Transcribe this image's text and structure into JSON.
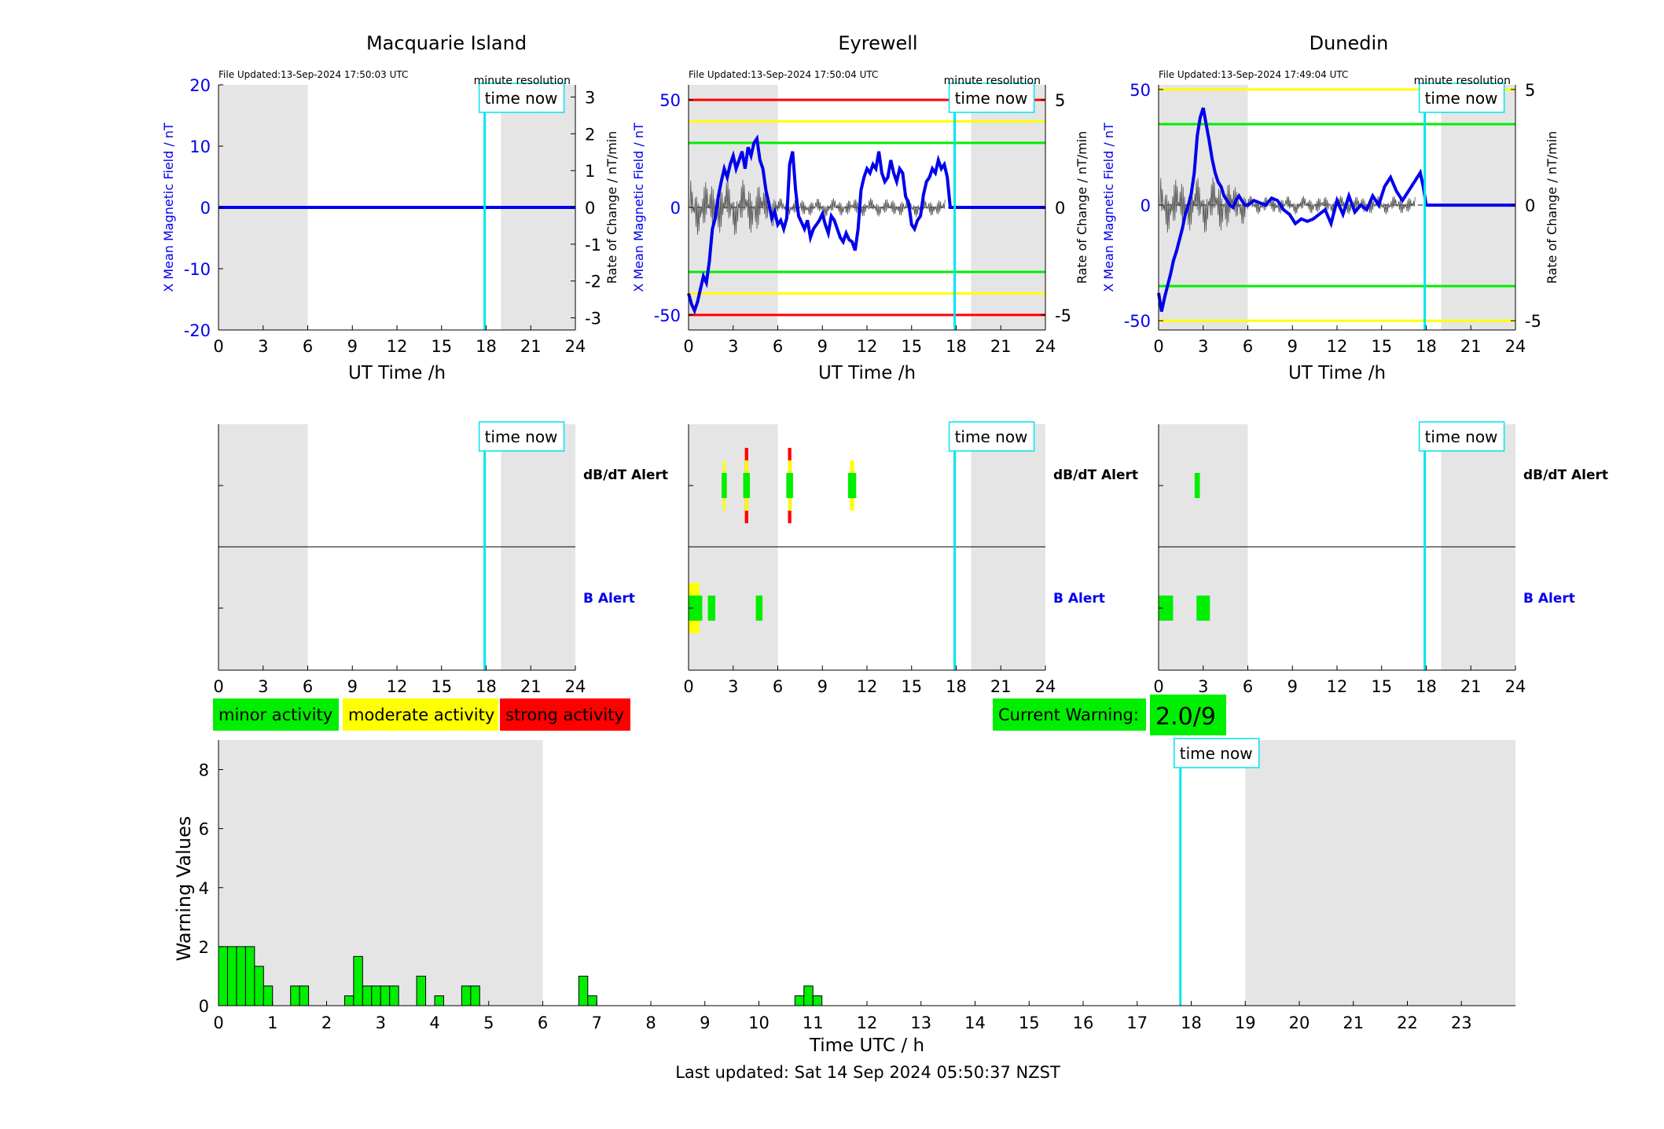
{
  "footer": "Last updated: Sat 14 Sep 2024 05:50:37 NZST",
  "legend": {
    "minor": "minor activity",
    "moderate": "moderate activity",
    "strong": "strong activity",
    "current_label": "Current Warning:",
    "current_value": "2.0/9"
  },
  "colors": {
    "minor": "#00ee00",
    "moderate": "#ffff00",
    "strong": "#ff0000",
    "now": "#00e5ee",
    "trace": "#0000ee",
    "night": "#e5e5e5"
  },
  "time_now_label": "time now",
  "dbdt_label": "dB/dT Alert",
  "b_label": "B Alert",
  "minute_resolution": "minute resolution",
  "stations": [
    {
      "name": "Macquarie Island",
      "updated": "File Updated:13-Sep-2024 17:50:03 UTC",
      "ylabel": "X Mean Magnetic Field / nT",
      "y2label": "Rate of Change / nT/min"
    },
    {
      "name": "Eyrewell",
      "updated": "File Updated:13-Sep-2024 17:50:04 UTC",
      "ylabel": "X Mean Magnetic Field / nT",
      "y2label": "Rate of Change / nT/min"
    },
    {
      "name": "Dunedin",
      "updated": "File Updated:13-Sep-2024 17:49:04 UTC",
      "ylabel": "X Mean Magnetic Field / nT",
      "y2label": "Rate of Change / nT/min"
    }
  ],
  "chart_data": [
    {
      "type": "line",
      "title": "Macquarie Island",
      "xlabel": "UT Time /h",
      "ylabel": "X Mean Magnetic Field / nT",
      "y2label": "Rate of Change / nT/min",
      "xlim": [
        0,
        24
      ],
      "ylim": [
        -20,
        20
      ],
      "y2lim": [
        -3.33,
        3.33
      ],
      "xticks": [
        0,
        3,
        6,
        9,
        12,
        15,
        18,
        21,
        24
      ],
      "yticks": [
        -20,
        -10,
        0,
        10,
        20
      ],
      "y2ticks": [
        -3,
        -2,
        -1,
        0,
        1,
        2,
        3
      ],
      "night": [
        [
          0,
          6
        ],
        [
          19,
          24
        ]
      ],
      "time_now": 17.9,
      "thresholds": [],
      "series": [
        {
          "x": [
            0,
            24
          ],
          "values": [
            0,
            0
          ]
        }
      ]
    },
    {
      "type": "line",
      "title": "Eyrewell",
      "xlabel": "UT Time /h",
      "ylabel": "X Mean Magnetic Field / nT",
      "y2label": "Rate of Change / nT/min",
      "xlim": [
        0,
        24
      ],
      "ylim": [
        -57,
        57
      ],
      "y2lim": [
        -5.7,
        5.7
      ],
      "xticks": [
        0,
        3,
        6,
        9,
        12,
        15,
        18,
        21,
        24
      ],
      "yticks": [
        -50,
        0,
        50
      ],
      "y2ticks": [
        -5,
        0,
        5
      ],
      "night": [
        [
          0,
          6
        ],
        [
          19,
          24
        ]
      ],
      "time_now": 17.9,
      "thresholds": [
        {
          "value": 50,
          "color": "#ff0000"
        },
        {
          "value": 40,
          "color": "#ffff00"
        },
        {
          "value": 30,
          "color": "#00ee00"
        },
        {
          "value": -30,
          "color": "#00ee00"
        },
        {
          "value": -40,
          "color": "#ffff00"
        },
        {
          "value": -50,
          "color": "#ff0000"
        }
      ],
      "series": [
        {
          "x": [
            0,
            0.2,
            0.4,
            0.6,
            0.8,
            1.0,
            1.2,
            1.4,
            1.6,
            1.8,
            2.0,
            2.2,
            2.4,
            2.6,
            2.8,
            3.0,
            3.2,
            3.4,
            3.6,
            3.8,
            4.0,
            4.2,
            4.4,
            4.6,
            4.8,
            5.0,
            5.2,
            5.4,
            5.6,
            5.8,
            6.0,
            6.2,
            6.4,
            6.6,
            6.8,
            7.0,
            7.2,
            7.4,
            7.6,
            7.8,
            8.0,
            8.2,
            8.4,
            8.6,
            8.8,
            9.0,
            9.2,
            9.4,
            9.6,
            9.8,
            10.0,
            10.2,
            10.4,
            10.6,
            10.8,
            11.0,
            11.2,
            11.4,
            11.6,
            11.8,
            12.0,
            12.2,
            12.4,
            12.6,
            12.8,
            13.0,
            13.2,
            13.4,
            13.6,
            13.8,
            14.0,
            14.2,
            14.4,
            14.6,
            14.8,
            15.0,
            15.2,
            15.4,
            15.6,
            15.8,
            16.0,
            16.2,
            16.4,
            16.6,
            16.8,
            17.0,
            17.2,
            17.4,
            17.6,
            17.8,
            18.0,
            19,
            20,
            21,
            22,
            23,
            24
          ],
          "values": [
            -40,
            -45,
            -48,
            -44,
            -38,
            -32,
            -35,
            -25,
            -10,
            -5,
            5,
            12,
            18,
            14,
            20,
            24,
            18,
            22,
            26,
            18,
            28,
            24,
            30,
            32,
            22,
            18,
            8,
            2,
            -5,
            -2,
            -8,
            -6,
            -10,
            -5,
            20,
            26,
            8,
            -4,
            -7,
            -10,
            -6,
            -14,
            -10,
            -8,
            -6,
            -3,
            -8,
            -12,
            -4,
            -6,
            -10,
            -14,
            -16,
            -12,
            -15,
            -16,
            -20,
            -10,
            8,
            14,
            18,
            16,
            20,
            18,
            26,
            16,
            12,
            14,
            22,
            16,
            12,
            18,
            16,
            5,
            2,
            -8,
            -10,
            -6,
            -4,
            6,
            12,
            14,
            18,
            16,
            22,
            18,
            20,
            14,
            0,
            0,
            0,
            0,
            0,
            0,
            0,
            0,
            0
          ]
        }
      ]
    },
    {
      "type": "line",
      "title": "Dunedin",
      "xlabel": "UT Time /h",
      "ylabel": "X Mean Magnetic Field / nT",
      "y2label": "Rate of Change / nT/min",
      "xlim": [
        0,
        24
      ],
      "ylim": [
        -54,
        52
      ],
      "y2lim": [
        -5.4,
        5.2
      ],
      "xticks": [
        0,
        3,
        6,
        9,
        12,
        15,
        18,
        21,
        24
      ],
      "yticks": [
        -50,
        0,
        50
      ],
      "y2ticks": [
        -5,
        0,
        5
      ],
      "night": [
        [
          0,
          6
        ],
        [
          19,
          24
        ]
      ],
      "time_now": 17.9,
      "thresholds": [
        {
          "value": 50,
          "color": "#ffff00"
        },
        {
          "value": 35,
          "color": "#00ee00"
        },
        {
          "value": -35,
          "color": "#00ee00"
        },
        {
          "value": -50,
          "color": "#ffff00"
        }
      ],
      "series": [
        {
          "x": [
            0,
            0.2,
            0.4,
            0.6,
            0.8,
            1.0,
            1.2,
            1.4,
            1.6,
            1.8,
            2.0,
            2.2,
            2.4,
            2.6,
            2.8,
            3.0,
            3.2,
            3.4,
            3.6,
            3.8,
            4.0,
            4.2,
            4.4,
            4.6,
            4.8,
            5.0,
            5.2,
            5.4,
            5.6,
            5.8,
            6.0,
            6.4,
            6.8,
            7.2,
            7.6,
            8.0,
            8.4,
            8.8,
            9.2,
            9.6,
            10.0,
            10.4,
            10.8,
            11.2,
            11.6,
            12.0,
            12.4,
            12.8,
            13.2,
            13.6,
            14.0,
            14.4,
            14.8,
            15.2,
            15.6,
            16.0,
            16.4,
            16.8,
            17.2,
            17.6,
            17.8,
            18,
            19,
            20,
            21,
            22,
            23,
            24
          ],
          "values": [
            -38,
            -46,
            -40,
            -35,
            -30,
            -24,
            -20,
            -15,
            -10,
            -4,
            0,
            5,
            14,
            30,
            38,
            42,
            35,
            28,
            20,
            14,
            10,
            8,
            4,
            2,
            0,
            -1,
            2,
            4,
            2,
            0,
            0,
            2,
            1,
            0,
            3,
            2,
            -2,
            -4,
            -8,
            -6,
            -7,
            -6,
            -4,
            -2,
            -8,
            2,
            -4,
            4,
            -3,
            0,
            -2,
            4,
            0,
            8,
            12,
            6,
            2,
            6,
            10,
            14,
            8,
            0,
            0,
            0,
            0,
            0,
            0,
            0
          ]
        }
      ]
    }
  ],
  "alerts": [
    {
      "dbdt": [],
      "b": []
    },
    {
      "dbdt": [
        {
          "h": 2.4,
          "w": 0.35,
          "level": 2
        },
        {
          "h": 3.9,
          "w": 0.45,
          "level": 3
        },
        {
          "h": 6.8,
          "w": 0.45,
          "level": 3
        },
        {
          "h": 11.0,
          "w": 0.55,
          "level": 2
        }
      ],
      "b": [
        {
          "h": 0.45,
          "w": 0.95,
          "level": 2
        },
        {
          "h": 1.55,
          "w": 0.5,
          "level": 1
        },
        {
          "h": 4.75,
          "w": 0.45,
          "level": 1
        }
      ]
    },
    {
      "dbdt": [
        {
          "h": 2.6,
          "w": 0.35,
          "level": 1
        }
      ],
      "b": [
        {
          "h": 0.5,
          "w": 0.95,
          "level": 1
        },
        {
          "h": 3.0,
          "w": 0.9,
          "level": 1
        }
      ]
    }
  ],
  "warning_chart": {
    "type": "bar",
    "xlabel": "Time UTC / h",
    "ylabel": "Warning Values",
    "xlim": [
      0,
      24
    ],
    "ylim": [
      0,
      9
    ],
    "yticks": [
      0,
      2,
      4,
      6,
      8
    ],
    "xticks": [
      0,
      1,
      2,
      3,
      4,
      5,
      6,
      7,
      8,
      9,
      10,
      11,
      12,
      13,
      14,
      15,
      16,
      17,
      18,
      19,
      20,
      21,
      22,
      23
    ],
    "night": [
      [
        0,
        6
      ],
      [
        19,
        24
      ]
    ],
    "time_now": 17.8,
    "bin_width": 0.1667,
    "x": [
      0,
      0.1667,
      0.3333,
      0.5,
      0.6667,
      0.8333,
      1.3333,
      1.5,
      2.3333,
      2.5,
      2.6667,
      2.8333,
      3.0,
      3.1667,
      3.6667,
      4.0,
      4.5,
      4.6667,
      6.6667,
      6.8333,
      10.6667,
      10.8333,
      11.0
    ],
    "values": [
      2,
      2,
      2,
      2,
      1.333,
      0.667,
      0.667,
      0.667,
      0.333,
      1.667,
      0.667,
      0.667,
      0.667,
      0.667,
      1,
      0.333,
      0.667,
      0.667,
      1,
      0.333,
      0.333,
      0.667,
      0.333
    ]
  }
}
